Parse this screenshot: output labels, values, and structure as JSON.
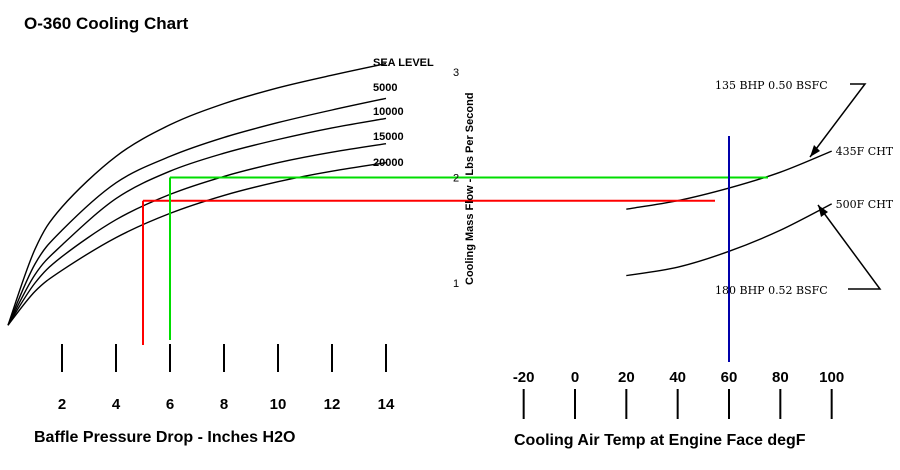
{
  "chart_data": [
    {
      "type": "line",
      "title": "O-360 Cooling Chart",
      "xlabel": "Baffle Pressure Drop - Inches H2O",
      "x_ticks": [
        2,
        4,
        6,
        8,
        10,
        12,
        14
      ],
      "xlim": [
        0,
        14
      ],
      "ylabel": "Cooling Mass Flow - Lbs Per Second",
      "y_ticks": [
        1,
        2,
        3
      ],
      "ylim": [
        0.6,
        3.2
      ],
      "series": [
        {
          "name": "SEA LEVEL",
          "x": [
            0,
            1,
            2,
            4,
            6,
            8,
            10,
            12,
            14
          ],
          "y": [
            0.6,
            1.32,
            1.72,
            2.2,
            2.5,
            2.7,
            2.85,
            2.97,
            3.08
          ]
        },
        {
          "name": "5000",
          "x": [
            0,
            1,
            2,
            4,
            6,
            8,
            10,
            12,
            14
          ],
          "y": [
            0.6,
            1.18,
            1.5,
            1.95,
            2.2,
            2.38,
            2.52,
            2.64,
            2.75
          ]
        },
        {
          "name": "10000",
          "x": [
            0,
            1,
            2,
            4,
            6,
            8,
            10,
            12,
            14
          ],
          "y": [
            0.6,
            1.08,
            1.36,
            1.8,
            2.06,
            2.23,
            2.36,
            2.47,
            2.56
          ]
        },
        {
          "name": "15000",
          "x": [
            0,
            1,
            2,
            4,
            6,
            8,
            10,
            12,
            14
          ],
          "y": [
            0.6,
            1.0,
            1.25,
            1.6,
            1.84,
            2.01,
            2.14,
            2.24,
            2.32
          ]
        },
        {
          "name": "20000",
          "x": [
            0,
            1,
            2,
            4,
            6,
            8,
            10,
            12,
            14
          ],
          "y": [
            0.6,
            0.92,
            1.12,
            1.43,
            1.66,
            1.83,
            1.96,
            2.06,
            2.14
          ]
        }
      ],
      "guides": [
        {
          "color": "#ff0000",
          "x": 5,
          "y": 1.78
        },
        {
          "color": "#00dd00",
          "x": 6,
          "y": 2.0
        }
      ]
    },
    {
      "type": "line",
      "xlabel": "Cooling Air Temp at Engine Face degF",
      "x_ticks": [
        -20,
        0,
        20,
        40,
        60,
        80,
        100
      ],
      "xlim": [
        -20,
        100
      ],
      "series": [
        {
          "name": "435F CHT",
          "x": [
            20,
            40,
            60,
            80,
            100
          ],
          "y": [
            1.7,
            1.78,
            1.9,
            2.05,
            2.25
          ]
        },
        {
          "name": "500F CHT",
          "x": [
            20,
            40,
            60,
            80,
            100
          ],
          "y": [
            1.07,
            1.15,
            1.3,
            1.5,
            1.75
          ]
        }
      ],
      "annotations": [
        "135 BHP 0.50 BSFC",
        "180 BHP 0.52 BSFC"
      ],
      "guides": [
        {
          "color": "#0000aa",
          "x": 60
        },
        {
          "color": "#ff0000",
          "y": 1.78
        },
        {
          "color": "#00dd00",
          "y": 2.0
        }
      ]
    }
  ]
}
